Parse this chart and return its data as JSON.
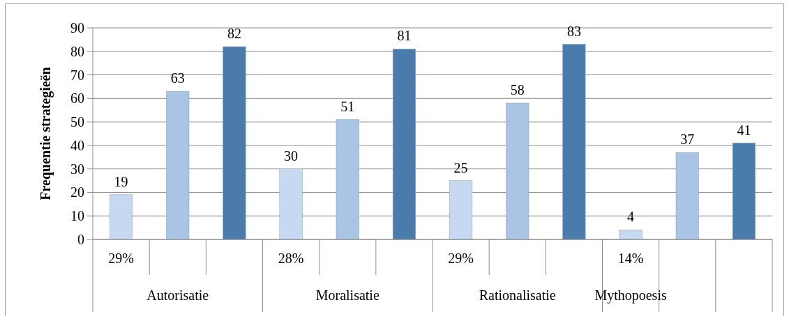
{
  "chart_data": {
    "type": "bar",
    "ylabel": "Frequentie strategieën",
    "categories": [
      "29%",
      null,
      null,
      "28%",
      null,
      null,
      "29%",
      null,
      null,
      "14%",
      null,
      null
    ],
    "values": [
      19,
      63,
      82,
      30,
      51,
      81,
      25,
      58,
      83,
      4,
      37,
      41
    ],
    "colors": [
      "#c6d9f1",
      "#a9c4e4",
      "#4a7bab",
      "#c6d9f1",
      "#a9c4e4",
      "#4a7bab",
      "#c6d9f1",
      "#a9c4e4",
      "#4a7bab",
      "#c6d9f1",
      "#a9c4e4",
      "#4a7bab"
    ],
    "ylim": [
      0,
      90
    ],
    "yticks": [
      0,
      10,
      20,
      30,
      40,
      50,
      60,
      70,
      80,
      90
    ],
    "grid": "y",
    "data_labels": true,
    "annotations": [
      "Autorisatie",
      "Moralisatie",
      "Rationalisatie",
      "Mythopoesis"
    ]
  }
}
